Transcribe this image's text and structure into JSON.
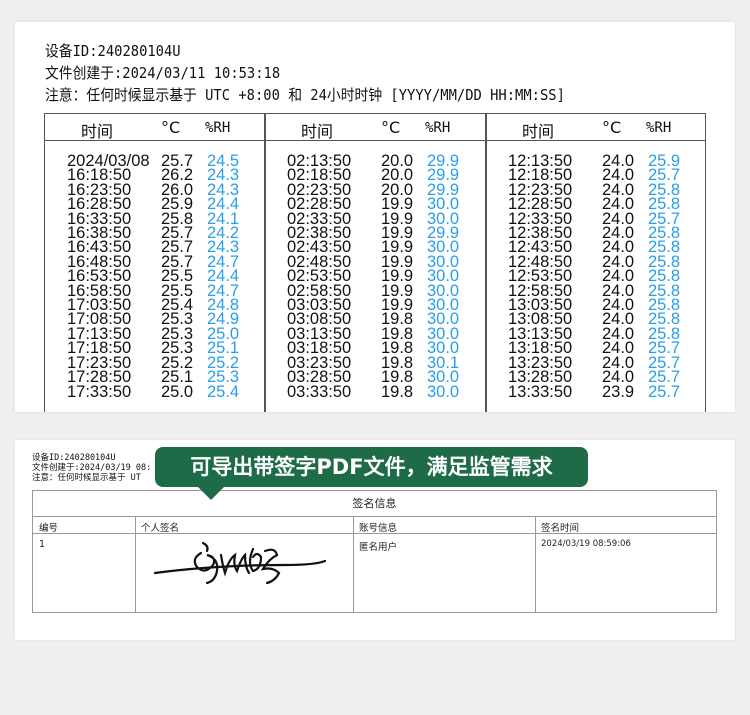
{
  "report": {
    "device_id": "设备ID:240280104U",
    "created": "文件创建于:2024/03/11 10:53:18",
    "note": "注意：任何时候显示基于 UTC +8:00 和 24小时时钟 [YYYY/MM/DD HH:MM:SS]",
    "headers": [
      "时间",
      "°C",
      "%RH"
    ],
    "columns": [
      {
        "times": [
          "2024/03/08",
          "16:18:50",
          "16:23:50",
          "16:28:50",
          "16:33:50",
          "16:38:50",
          "16:43:50",
          "16:48:50",
          "16:53:50",
          "16:58:50",
          "17:03:50",
          "17:08:50",
          "17:13:50",
          "17:18:50",
          "17:23:50",
          "17:28:50",
          "17:33:50"
        ],
        "temps": [
          "25.7",
          "26.2",
          "26.0",
          "25.9",
          "25.8",
          "25.7",
          "25.7",
          "25.7",
          "25.5",
          "25.5",
          "25.4",
          "25.3",
          "25.3",
          "25.3",
          "25.2",
          "25.1",
          "25.0"
        ],
        "rh": [
          "24.5",
          "24.3",
          "24.3",
          "24.4",
          "24.1",
          "24.2",
          "24.3",
          "24.7",
          "24.4",
          "24.7",
          "24.8",
          "24.9",
          "25.0",
          "25.1",
          "25.2",
          "25.3",
          "25.4"
        ]
      },
      {
        "times": [
          "02:13:50",
          "02:18:50",
          "02:23:50",
          "02:28:50",
          "02:33:50",
          "02:38:50",
          "02:43:50",
          "02:48:50",
          "02:53:50",
          "02:58:50",
          "03:03:50",
          "03:08:50",
          "03:13:50",
          "03:18:50",
          "03:23:50",
          "03:28:50",
          "03:33:50"
        ],
        "temps": [
          "20.0",
          "20.0",
          "20.0",
          "19.9",
          "19.9",
          "19.9",
          "19.9",
          "19.9",
          "19.9",
          "19.9",
          "19.9",
          "19.8",
          "19.8",
          "19.8",
          "19.8",
          "19.8",
          "19.8"
        ],
        "rh": [
          "29.9",
          "29.9",
          "29.9",
          "30.0",
          "30.0",
          "29.9",
          "30.0",
          "30.0",
          "30.0",
          "30.0",
          "30.0",
          "30.0",
          "30.0",
          "30.0",
          "30.1",
          "30.0",
          "30.0"
        ]
      },
      {
        "times": [
          "12:13:50",
          "12:18:50",
          "12:23:50",
          "12:28:50",
          "12:33:50",
          "12:38:50",
          "12:43:50",
          "12:48:50",
          "12:53:50",
          "12:58:50",
          "13:03:50",
          "13:08:50",
          "13:13:50",
          "13:18:50",
          "13:23:50",
          "13:28:50",
          "13:33:50"
        ],
        "temps": [
          "24.0",
          "24.0",
          "24.0",
          "24.0",
          "24.0",
          "24.0",
          "24.0",
          "24.0",
          "24.0",
          "24.0",
          "24.0",
          "24.0",
          "24.0",
          "24.0",
          "24.0",
          "24.0",
          "23.9"
        ],
        "rh": [
          "25.9",
          "25.7",
          "25.8",
          "25.8",
          "25.7",
          "25.8",
          "25.8",
          "25.8",
          "25.8",
          "25.8",
          "25.8",
          "25.8",
          "25.8",
          "25.7",
          "25.7",
          "25.7",
          "25.7"
        ]
      }
    ]
  },
  "signature_doc": {
    "device_id": "设备ID:240280104U",
    "created": "文件创建于:2024/03/19 08:",
    "note": "注意：任何时候显示基于 UT",
    "banner": "可导出带签字PDF文件，满足监管需求",
    "table_title": "签名信息",
    "headers": [
      "编号",
      "个人签名",
      "账号信息",
      "签名时间"
    ],
    "row": {
      "no": "1",
      "account": "匿名用户",
      "time": "2024/03/19 08:59:06"
    }
  },
  "colors": {
    "rh_text": "#2a9ee6",
    "banner_bg": "#1d6b47"
  }
}
